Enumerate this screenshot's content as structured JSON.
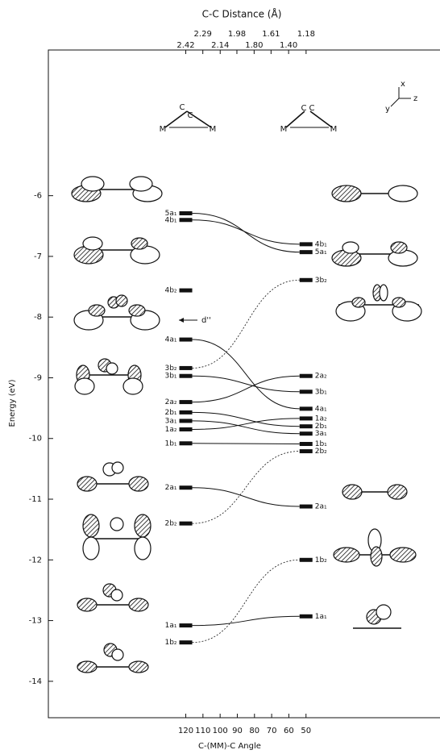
{
  "chart_data": {
    "type": "correlation",
    "title": "C-C Distance (Å)",
    "ylabel": "Energy (eV)",
    "xlabel": "C-(MM)-C Angle",
    "annotation": "d''",
    "x": [
      120,
      50
    ],
    "xlim": [
      200,
      -28
    ],
    "xticks": [
      120,
      110,
      100,
      90,
      80,
      70,
      60,
      50
    ],
    "x2ticks": [
      2.42,
      2.29,
      2.14,
      1.98,
      {
        "value": 1.8,
        "label": "1.80"
      },
      1.61,
      {
        "value": 1.4,
        "label": "1.40"
      },
      1.18
    ],
    "ylim": [
      -14.6,
      -3.6
    ],
    "yticks": [
      -6,
      -7,
      -8,
      -9,
      -10,
      -11,
      -12,
      -13,
      -14
    ],
    "color": "#111111",
    "series": [
      {
        "name": "5a₁",
        "values": [
          -6.29,
          -6.93
        ]
      },
      {
        "name": "4b₁",
        "values": [
          -6.4,
          -6.8
        ]
      },
      {
        "name": "4b₂",
        "values": [
          -7.56,
          null
        ],
        "style": "dotted"
      },
      {
        "name": "4a₁",
        "values": [
          -8.37,
          -9.51
        ]
      },
      {
        "name": "3b₂",
        "values": [
          -8.84,
          -7.39
        ],
        "style": "dotted"
      },
      {
        "name": "3b₁",
        "values": [
          -8.97,
          -9.23
        ]
      },
      {
        "name": "2a₂",
        "values": [
          -9.4,
          -8.97
        ]
      },
      {
        "name": "2b₁",
        "values": [
          -9.57,
          -9.8
        ]
      },
      {
        "name": "3a₁",
        "values": [
          -9.71,
          -9.92
        ]
      },
      {
        "name": "1a₂",
        "values": [
          -9.85,
          -9.67
        ]
      },
      {
        "name": "1b₁",
        "values": [
          -10.08,
          -10.09
        ]
      },
      {
        "name": "2a₁",
        "values": [
          -10.81,
          -11.12
        ]
      },
      {
        "name": "2b₂",
        "values": [
          -11.4,
          -10.21
        ],
        "style": "dotted"
      },
      {
        "name": "1a₁",
        "values": [
          -13.08,
          -12.93
        ]
      },
      {
        "name": "1b₂",
        "values": [
          -13.36,
          -12.0
        ],
        "style": "dotted"
      }
    ],
    "left_structure": [
      "M",
      "C",
      "C",
      "M"
    ],
    "right_structure": [
      "M",
      "C",
      "C",
      "M"
    ],
    "axes_glyph": [
      "x",
      "y",
      "z"
    ]
  }
}
